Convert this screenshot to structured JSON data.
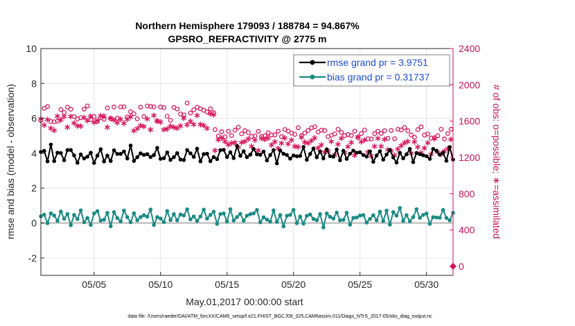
{
  "chart_data": {
    "type": "line",
    "title_line1": "Northern Hemisphere 179093 / 188784 = 94.867%",
    "title_line2": "GPSRO_REFRACTIVITY @ 2775 m",
    "xlabel": "May.01,2017 00:00:00 start",
    "ylabel_left": "rmse and bias (model - observation)",
    "ylabel_right": "# of obs: o=possible; ∗=assimilated",
    "xlim": [
      1,
      32
    ],
    "ylim_left": [
      -3,
      10
    ],
    "ylim_right": [
      -100,
      2400
    ],
    "x_ticks": [
      5,
      10,
      15,
      20,
      25,
      30
    ],
    "x_tick_labels": [
      "05/05",
      "05/10",
      "05/15",
      "05/20",
      "05/25",
      "05/30"
    ],
    "y_left_ticks": [
      -2,
      0,
      2,
      4,
      6,
      8,
      10
    ],
    "y_left_tick_labels": [
      "-2",
      "0",
      "2",
      "4",
      "6",
      "8",
      "10"
    ],
    "y_right_ticks": [
      0,
      400,
      800,
      1200,
      1600,
      2000,
      2400
    ],
    "y_right_tick_labels": [
      "0",
      "400",
      "800",
      "1200",
      "1600",
      "2000",
      "2400"
    ],
    "grid": true,
    "legend_position": "top-right",
    "footnote": "data file: /Users/raeder/DAI/ATM_forcXX/CAM6_setup/f.e21.FHIST_BGC.f09_025.CAM6assim.011/Diags_NTrS_2017-05/obs_diag_output.nc",
    "series": [
      {
        "name": "rmse grand pr = 3.9751",
        "color": "#000000",
        "axis": "left",
        "marker": "dot",
        "base": 3.9,
        "noise": 0.22,
        "pattern": [
          0.3,
          0.1,
          -0.2,
          0.5,
          -0.3,
          0.0,
          0.2,
          -0.4,
          0.1,
          0.3,
          -0.1,
          -0.5,
          0.2,
          0.0,
          -0.2,
          0.4,
          -0.3,
          0.1,
          0.3,
          -0.2,
          0.0,
          -0.4,
          0.2,
          0.1,
          -0.1,
          0.3,
          -0.2,
          0.5,
          -0.3,
          0.0,
          0.1,
          -0.1
        ]
      },
      {
        "name": "bias grand pr = 0.31737",
        "color": "#1a8a84",
        "axis": "left",
        "marker": "dot",
        "base": 0.3,
        "noise": 0.18,
        "pattern": [
          0.2,
          0.4,
          -0.3,
          0.1,
          0.0,
          -0.2,
          0.6,
          -0.1,
          0.3,
          -0.4,
          0.2,
          0.0,
          0.5,
          -0.2,
          0.1,
          -0.3,
          0.2,
          0.4,
          -0.1,
          0.0,
          0.3,
          -0.5,
          0.2,
          0.1,
          -0.2,
          0.6,
          0.0,
          -0.1,
          0.3,
          -0.3,
          0.2,
          0.1
        ]
      },
      {
        "name": "possible",
        "color": "#d81b60",
        "axis": "right",
        "marker": "circle",
        "segments": [
          {
            "x0": 1.0,
            "x1": 10.9,
            "level": 1680,
            "noise": 90
          },
          {
            "x0": 11.0,
            "x1": 14.0,
            "level": 1720,
            "noise": 80
          },
          {
            "x0": 14.1,
            "x1": 22.0,
            "level": 1480,
            "noise": 60
          },
          {
            "x0": 22.1,
            "x1": 32.0,
            "level": 1470,
            "noise": 70
          }
        ]
      },
      {
        "name": "assimilated",
        "color": "#d81b60",
        "axis": "right",
        "marker": "asterisk",
        "segments": [
          {
            "x0": 1.0,
            "x1": 10.9,
            "level": 1590,
            "noise": 90
          },
          {
            "x0": 11.0,
            "x1": 14.0,
            "level": 1600,
            "noise": 90
          },
          {
            "x0": 14.1,
            "x1": 22.0,
            "level": 1360,
            "noise": 80
          },
          {
            "x0": 22.1,
            "x1": 32.0,
            "level": 1330,
            "noise": 110
          }
        ]
      }
    ],
    "annotations": [
      {
        "text": "outlier point at day 32",
        "x": 32,
        "y_right": 0,
        "marker": "diamond"
      }
    ]
  }
}
